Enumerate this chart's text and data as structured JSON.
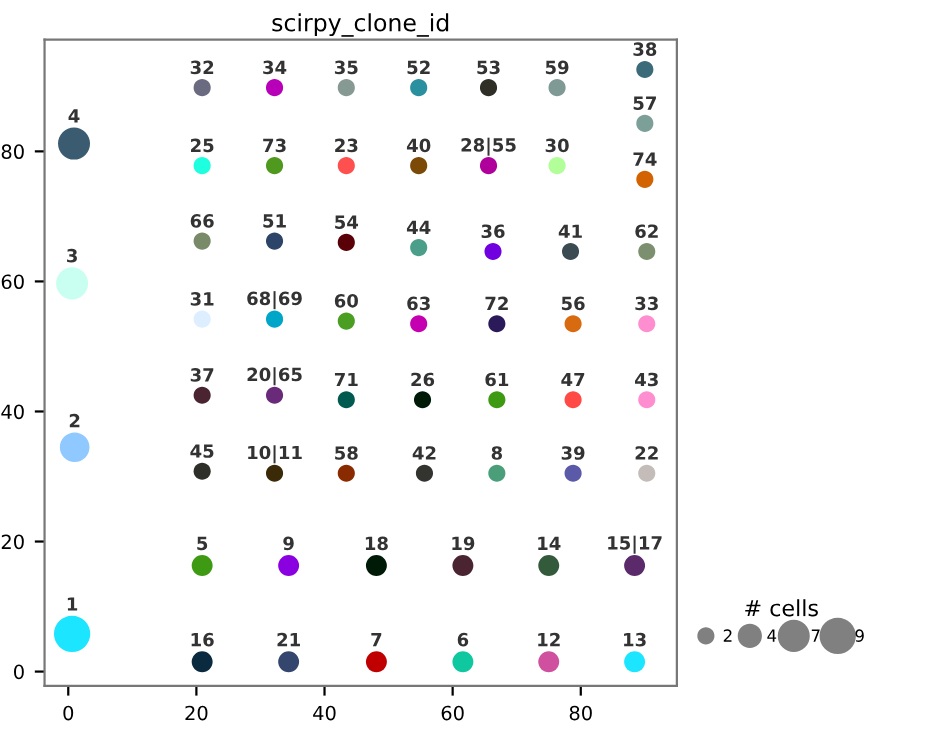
{
  "chart_data": {
    "type": "bubble",
    "title": "scirpy_clone_id",
    "legend_title": "# cells",
    "size_legend": [
      2,
      4,
      7,
      9
    ],
    "xlim": [
      -3.7,
      95
    ],
    "ylim": [
      -2.2,
      97.2
    ],
    "xticks": [
      0,
      20,
      40,
      60,
      80
    ],
    "yticks": [
      0,
      20,
      40,
      60,
      80
    ],
    "grid": false,
    "series": [
      {
        "x": [
          0.6,
          1.0,
          0.6,
          0.9,
          20.9,
          32.2,
          43.4,
          54.7,
          65.6,
          76.3,
          90.0,
          90.0,
          20.9,
          32.2,
          43.4,
          54.7,
          65.6,
          76.3,
          90.0,
          20.9,
          32.2,
          43.4,
          54.7,
          66.3,
          78.4,
          90.3,
          20.9,
          32.2,
          43.4,
          54.7,
          66.9,
          78.8,
          90.3,
          20.9,
          32.2,
          43.4,
          55.3,
          66.9,
          78.8,
          90.3,
          20.9,
          32.2,
          43.4,
          55.6,
          66.9,
          78.8,
          90.3,
          20.9,
          34.4,
          48.1,
          61.6,
          75.0,
          88.4,
          20.9,
          34.4,
          48.1,
          61.6,
          75.0,
          88.4
        ],
        "values": [
          5.8,
          34.5,
          59.7,
          81.2,
          89.8,
          89.8,
          89.8,
          89.8,
          89.8,
          89.8,
          92.6,
          84.3,
          77.8,
          77.8,
          77.8,
          77.8,
          77.8,
          77.8,
          75.7,
          66.2,
          66.2,
          66.0,
          65.2,
          64.6,
          64.6,
          64.6,
          54.2,
          54.2,
          53.9,
          53.5,
          53.5,
          53.5,
          53.5,
          42.5,
          42.5,
          41.8,
          41.8,
          41.8,
          41.8,
          41.8,
          30.8,
          30.5,
          30.5,
          30.5,
          30.5,
          30.5,
          30.5,
          16.3,
          16.3,
          16.3,
          16.3,
          16.3,
          16.3,
          1.5,
          1.5,
          1.5,
          1.5,
          1.5,
          1.5
        ],
        "sizes": [
          9,
          6,
          7,
          7,
          2,
          2,
          2,
          2,
          2,
          2,
          2,
          2,
          2,
          2,
          2,
          2,
          2,
          2,
          2,
          2,
          2,
          2,
          2,
          2,
          2,
          2,
          2,
          2,
          2,
          2,
          2,
          2,
          2,
          2,
          2,
          2,
          2,
          2,
          2,
          2,
          2,
          2,
          2,
          2,
          2,
          2,
          2,
          3,
          3,
          3,
          3,
          3,
          3,
          3,
          3,
          3,
          3,
          3,
          3
        ],
        "colors": [
          "#1ce6ff",
          "#8fc9ff",
          "#c8fff0",
          "#3b5b70",
          "#6a6a80",
          "#b800b8",
          "#879993",
          "#2a8f9f",
          "#2f2f28",
          "#7f9a94",
          "#3b6a78",
          "#7c9f98",
          "#1effe0",
          "#4f9a1e",
          "#ff5050",
          "#7a4a06",
          "#b0009b",
          "#b2ff9a",
          "#d26300",
          "#788a68",
          "#2b4468",
          "#5a0007",
          "#4a9e8a",
          "#7000e0",
          "#3c4a52",
          "#7c9070",
          "#dceeff",
          "#00a6c8",
          "#4a9e22",
          "#c400b0",
          "#2a1a5a",
          "#d86b10",
          "#ff8ed0",
          "#4a2430",
          "#6a2a7a",
          "#005a50",
          "#001a08",
          "#3e9a12",
          "#ff4a46",
          "#ff8ed0",
          "#2f2f2a",
          "#3a2a08",
          "#8a2a00",
          "#333330",
          "#4a9e7a",
          "#5a5aa8",
          "#c4bcb8",
          "#3e9a12",
          "#8a00e0",
          "#001a08",
          "#4a2430",
          "#345a3c",
          "#5a2a6a",
          "#0a2a40",
          "#34466e",
          "#c00000",
          "#10c8a0",
          "#d050a0",
          "#1ce6ff"
        ]
      }
    ],
    "annotations": [
      {
        "text": "1",
        "x": 0.6,
        "y": 5.8
      },
      {
        "text": "2",
        "x": 1.0,
        "y": 34.5
      },
      {
        "text": "3",
        "x": 0.6,
        "y": 59.7
      },
      {
        "text": "4",
        "x": 0.9,
        "y": 81.2
      },
      {
        "text": "32",
        "x": 20.9,
        "y": 89.8
      },
      {
        "text": "34",
        "x": 32.2,
        "y": 89.8
      },
      {
        "text": "35",
        "x": 43.4,
        "y": 89.8
      },
      {
        "text": "52",
        "x": 54.7,
        "y": 89.8
      },
      {
        "text": "53",
        "x": 65.6,
        "y": 89.8
      },
      {
        "text": "59",
        "x": 76.3,
        "y": 89.8
      },
      {
        "text": "38",
        "x": 90.0,
        "y": 92.6
      },
      {
        "text": "57",
        "x": 90.0,
        "y": 84.3
      },
      {
        "text": "25",
        "x": 20.9,
        "y": 77.8
      },
      {
        "text": "73",
        "x": 32.2,
        "y": 77.8
      },
      {
        "text": "23",
        "x": 43.4,
        "y": 77.8
      },
      {
        "text": "40",
        "x": 54.7,
        "y": 77.8
      },
      {
        "text": "28|55",
        "x": 65.6,
        "y": 77.8
      },
      {
        "text": "30",
        "x": 76.3,
        "y": 77.8
      },
      {
        "text": "74",
        "x": 90.0,
        "y": 75.7
      },
      {
        "text": "66",
        "x": 20.9,
        "y": 66.2
      },
      {
        "text": "51",
        "x": 32.2,
        "y": 66.2
      },
      {
        "text": "54",
        "x": 43.4,
        "y": 66.0
      },
      {
        "text": "44",
        "x": 54.7,
        "y": 65.2
      },
      {
        "text": "36",
        "x": 66.3,
        "y": 64.6
      },
      {
        "text": "41",
        "x": 78.4,
        "y": 64.6
      },
      {
        "text": "62",
        "x": 90.3,
        "y": 64.6
      },
      {
        "text": "31",
        "x": 20.9,
        "y": 54.2
      },
      {
        "text": "68|69",
        "x": 32.2,
        "y": 54.2
      },
      {
        "text": "60",
        "x": 43.4,
        "y": 53.9
      },
      {
        "text": "63",
        "x": 54.7,
        "y": 53.5
      },
      {
        "text": "72",
        "x": 66.9,
        "y": 53.5
      },
      {
        "text": "56",
        "x": 78.8,
        "y": 53.5
      },
      {
        "text": "33",
        "x": 90.3,
        "y": 53.5
      },
      {
        "text": "37",
        "x": 20.9,
        "y": 42.5
      },
      {
        "text": "20|65",
        "x": 32.2,
        "y": 42.5
      },
      {
        "text": "71",
        "x": 43.4,
        "y": 41.8
      },
      {
        "text": "26",
        "x": 55.3,
        "y": 41.8
      },
      {
        "text": "61",
        "x": 66.9,
        "y": 41.8
      },
      {
        "text": "47",
        "x": 78.8,
        "y": 41.8
      },
      {
        "text": "43",
        "x": 90.3,
        "y": 41.8
      },
      {
        "text": "45",
        "x": 20.9,
        "y": 30.8
      },
      {
        "text": "10|11",
        "x": 32.2,
        "y": 30.5
      },
      {
        "text": "58",
        "x": 43.4,
        "y": 30.5
      },
      {
        "text": "42",
        "x": 55.6,
        "y": 30.5
      },
      {
        "text": "8",
        "x": 66.9,
        "y": 30.5
      },
      {
        "text": "39",
        "x": 78.8,
        "y": 30.5
      },
      {
        "text": "22",
        "x": 90.3,
        "y": 30.5
      },
      {
        "text": "5",
        "x": 20.9,
        "y": 16.3
      },
      {
        "text": "9",
        "x": 34.4,
        "y": 16.3
      },
      {
        "text": "18",
        "x": 48.1,
        "y": 16.3
      },
      {
        "text": "19",
        "x": 61.6,
        "y": 16.3
      },
      {
        "text": "14",
        "x": 75.0,
        "y": 16.3
      },
      {
        "text": "15|17",
        "x": 88.4,
        "y": 16.3
      },
      {
        "text": "16",
        "x": 20.9,
        "y": 1.5
      },
      {
        "text": "21",
        "x": 34.4,
        "y": 1.5
      },
      {
        "text": "7",
        "x": 48.1,
        "y": 1.5
      },
      {
        "text": "6",
        "x": 61.6,
        "y": 1.5
      },
      {
        "text": "12",
        "x": 75.0,
        "y": 1.5
      },
      {
        "text": "13",
        "x": 88.4,
        "y": 1.5
      }
    ]
  }
}
